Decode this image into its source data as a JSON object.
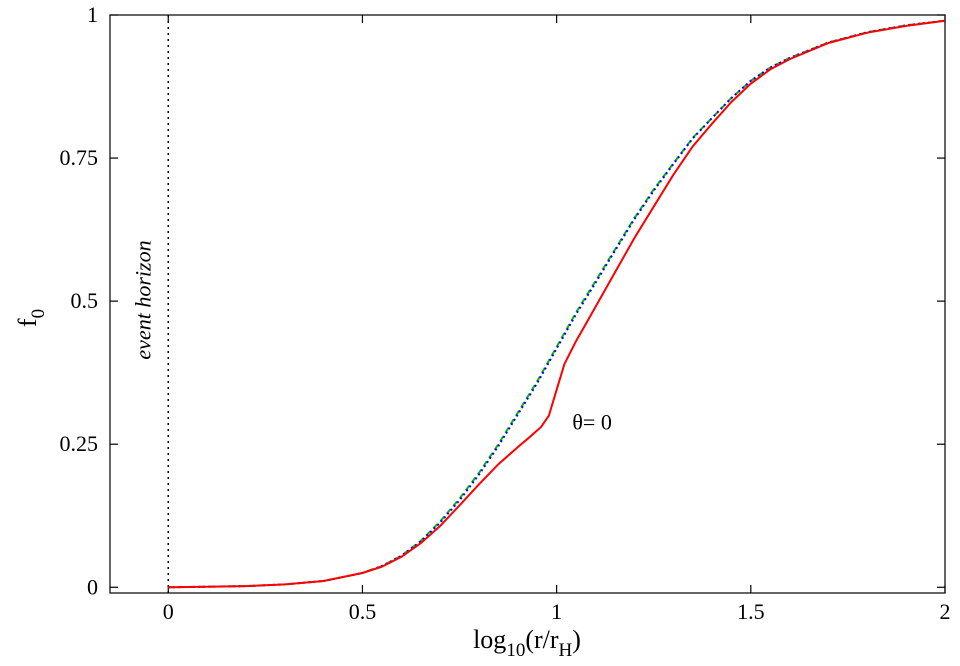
{
  "chart_data": {
    "type": "line",
    "xlabel": {
      "base": "log",
      "sub": "10",
      "mid": "(r/r",
      "sub2": "H",
      "end": ")"
    },
    "ylabel": {
      "base": "f",
      "sub": "0"
    },
    "xlim": [
      -0.15,
      2.0
    ],
    "ylim": [
      -0.01,
      1.0
    ],
    "xticks": [
      {
        "value": 0,
        "label": "0"
      },
      {
        "value": 0.5,
        "label": "0.5"
      },
      {
        "value": 1,
        "label": "1"
      },
      {
        "value": 1.5,
        "label": "1.5"
      },
      {
        "value": 2,
        "label": "2"
      }
    ],
    "yticks": [
      {
        "value": 0,
        "label": "0"
      },
      {
        "value": 0.25,
        "label": "0.25"
      },
      {
        "value": 0.5,
        "label": "0.5"
      },
      {
        "value": 0.75,
        "label": "0.75"
      },
      {
        "value": 1,
        "label": "1"
      }
    ],
    "grid": false,
    "legend": "none",
    "vline": {
      "x": 0,
      "label": "event horizon",
      "color": "#000000",
      "style": "dotted"
    },
    "annotations": [
      {
        "text": "θ= 0",
        "x": 1.02,
        "y": 0.29
      }
    ],
    "series": [
      {
        "color": "#00c000",
        "style": "dashed",
        "x": [
          0,
          0.1,
          0.2,
          0.3,
          0.4,
          0.5,
          0.55,
          0.6,
          0.65,
          0.7,
          0.75,
          0.8,
          0.85,
          0.9,
          0.95,
          1.0,
          1.05,
          1.1,
          1.15,
          1.2,
          1.25,
          1.3,
          1.35,
          1.4,
          1.45,
          1.5,
          1.55,
          1.6,
          1.7,
          1.8,
          1.9,
          2.0
        ],
        "y": [
          0,
          0.001,
          0.002,
          0.005,
          0.011,
          0.025,
          0.037,
          0.055,
          0.081,
          0.115,
          0.155,
          0.2,
          0.25,
          0.305,
          0.36,
          0.42,
          0.48,
          0.535,
          0.59,
          0.645,
          0.695,
          0.74,
          0.785,
          0.82,
          0.855,
          0.885,
          0.908,
          0.925,
          0.952,
          0.97,
          0.982,
          0.99
        ]
      },
      {
        "color": "#0000ff",
        "style": "dotted",
        "x": [
          0,
          0.1,
          0.2,
          0.3,
          0.4,
          0.5,
          0.55,
          0.6,
          0.65,
          0.7,
          0.75,
          0.8,
          0.85,
          0.9,
          0.95,
          1.0,
          1.05,
          1.1,
          1.15,
          1.2,
          1.25,
          1.3,
          1.35,
          1.4,
          1.45,
          1.5,
          1.55,
          1.6,
          1.7,
          1.8,
          1.9,
          2.0
        ],
        "y": [
          0,
          0.001,
          0.002,
          0.005,
          0.011,
          0.025,
          0.037,
          0.055,
          0.08,
          0.113,
          0.152,
          0.197,
          0.247,
          0.302,
          0.357,
          0.417,
          0.477,
          0.532,
          0.588,
          0.643,
          0.693,
          0.739,
          0.784,
          0.82,
          0.855,
          0.885,
          0.908,
          0.925,
          0.952,
          0.97,
          0.982,
          0.99
        ]
      },
      {
        "color": "#ff0000",
        "style": "solid",
        "x": [
          0,
          0.1,
          0.2,
          0.3,
          0.4,
          0.5,
          0.55,
          0.6,
          0.65,
          0.7,
          0.75,
          0.8,
          0.85,
          0.9,
          0.93,
          0.96,
          0.98,
          1.0,
          1.02,
          1.05,
          1.1,
          1.15,
          1.2,
          1.25,
          1.3,
          1.35,
          1.4,
          1.45,
          1.5,
          1.55,
          1.6,
          1.7,
          1.8,
          1.9,
          2.0
        ],
        "y": [
          0,
          0.001,
          0.002,
          0.005,
          0.011,
          0.025,
          0.036,
          0.053,
          0.077,
          0.107,
          0.143,
          0.18,
          0.215,
          0.245,
          0.262,
          0.28,
          0.3,
          0.345,
          0.39,
          0.43,
          0.49,
          0.55,
          0.61,
          0.665,
          0.72,
          0.77,
          0.81,
          0.848,
          0.88,
          0.905,
          0.923,
          0.951,
          0.969,
          0.981,
          0.99
        ]
      }
    ]
  }
}
